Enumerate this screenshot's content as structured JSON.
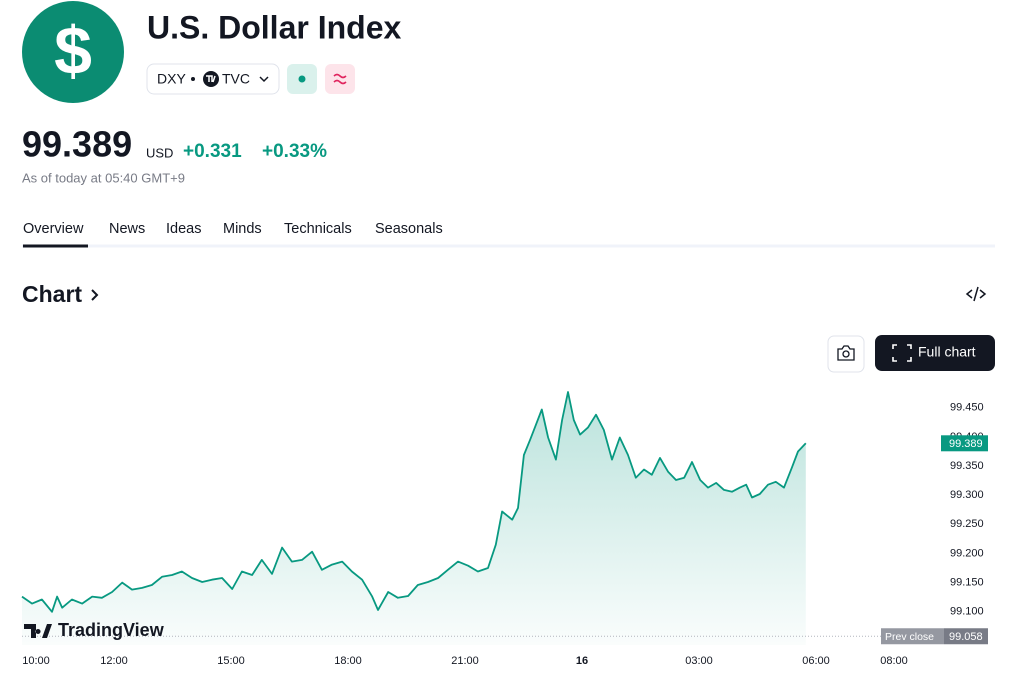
{
  "header": {
    "logo": "$",
    "title": "U.S. Dollar Index",
    "symbol": "DXY",
    "exchange": "TVC",
    "price": "99.389",
    "currency": "USD",
    "change": "+0.331",
    "change_percent": "+0.33%",
    "timestamp": "As of today at 05:40 GMT+9"
  },
  "tabs": [
    "Overview",
    "News",
    "Ideas",
    "Minds",
    "Technicals",
    "Seasonals"
  ],
  "section_title": "Chart",
  "full_chart_button": "Full chart",
  "brand": "TradingView",
  "chart_data": {
    "type": "area",
    "color": "#089981",
    "x": [
      9.64,
      9.9,
      10.15,
      10.41,
      10.54,
      10.67,
      10.92,
      11.18,
      11.44,
      11.69,
      11.95,
      12.21,
      12.46,
      12.72,
      12.97,
      13.23,
      13.49,
      13.74,
      14.0,
      14.26,
      14.51,
      14.77,
      15.03,
      15.28,
      15.54,
      15.79,
      16.05,
      16.31,
      16.56,
      16.82,
      17.08,
      17.33,
      17.59,
      17.85,
      18.1,
      18.36,
      18.62,
      18.77,
      19.03,
      19.28,
      19.54,
      19.79,
      20.05,
      20.31,
      20.56,
      20.82,
      21.08,
      21.33,
      21.59,
      21.79,
      21.95,
      22.21,
      22.36,
      22.51,
      22.67,
      22.82,
      22.97,
      23.13,
      23.33,
      23.49,
      23.64,
      23.79,
      23.95,
      24.15,
      24.36,
      24.56,
      24.77,
      24.97,
      25.18,
      25.38,
      25.59,
      25.79,
      26.0,
      26.21,
      26.41,
      26.62,
      26.82,
      27.03,
      27.23,
      27.44,
      27.64,
      27.85,
      28.05,
      28.21,
      28.36,
      28.56,
      28.77,
      28.97,
      29.18,
      29.38,
      29.54,
      29.74
    ],
    "values": [
      99.126,
      99.114,
      99.121,
      99.1,
      99.126,
      99.107,
      99.121,
      99.114,
      99.126,
      99.124,
      99.134,
      99.15,
      99.138,
      99.141,
      99.146,
      99.16,
      99.163,
      99.169,
      99.158,
      99.151,
      99.155,
      99.158,
      99.139,
      99.169,
      99.163,
      99.189,
      99.165,
      99.21,
      99.186,
      99.189,
      99.203,
      99.172,
      99.181,
      99.186,
      99.169,
      99.155,
      99.126,
      99.103,
      99.134,
      99.124,
      99.127,
      99.146,
      99.151,
      99.158,
      99.172,
      99.186,
      99.179,
      99.169,
      99.175,
      99.215,
      99.272,
      99.258,
      99.278,
      99.369,
      99.395,
      99.421,
      99.447,
      99.399,
      99.361,
      99.429,
      99.477,
      99.429,
      99.404,
      99.416,
      99.438,
      99.412,
      99.361,
      99.399,
      99.369,
      99.33,
      99.344,
      99.335,
      99.364,
      99.34,
      99.326,
      99.33,
      99.357,
      99.326,
      99.313,
      99.321,
      99.309,
      99.306,
      99.313,
      99.318,
      99.296,
      99.302,
      99.318,
      99.323,
      99.313,
      99.347,
      99.375,
      99.389
    ],
    "xlim": [
      9.64,
      33.18
    ],
    "ylim": [
      99.043,
      99.489
    ],
    "xticks": [
      {
        "value": 10,
        "label": "10:00"
      },
      {
        "value": 12,
        "label": "12:00"
      },
      {
        "value": 15,
        "label": "15:00"
      },
      {
        "value": 18,
        "label": "18:00"
      },
      {
        "value": 21,
        "label": "21:00"
      },
      {
        "value": 24,
        "label": "16"
      },
      {
        "value": 27,
        "label": "03:00"
      },
      {
        "value": 30,
        "label": "06:00"
      },
      {
        "value": 32,
        "label": "08:00"
      }
    ],
    "yticks": [
      {
        "value": 99.1,
        "label": "99.100"
      },
      {
        "value": 99.15,
        "label": "99.150"
      },
      {
        "value": 99.2,
        "label": "99.200"
      },
      {
        "value": 99.25,
        "label": "99.250"
      },
      {
        "value": 99.3,
        "label": "99.300"
      },
      {
        "value": 99.35,
        "label": "99.350"
      },
      {
        "value": 99.4,
        "label": "99.400"
      },
      {
        "value": 99.45,
        "label": "99.450"
      }
    ],
    "last_price": {
      "value": 99.389,
      "label": "99.389"
    },
    "prev_close_label": "Prev close",
    "prev_close": {
      "value": 99.058,
      "label": "99.058"
    }
  }
}
